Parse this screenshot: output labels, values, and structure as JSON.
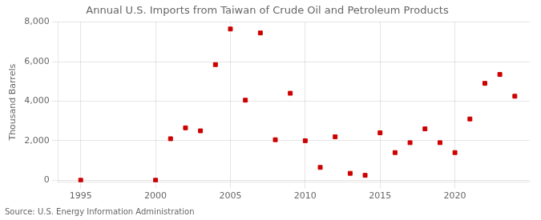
{
  "chart_data": {
    "type": "scatter",
    "title": "Annual U.S. Imports from Taiwan of Crude Oil and Petroleum Products",
    "ylabel": "Thousand Barrels",
    "source": "Source: U.S. Energy Information Administration",
    "x": [
      1995,
      2000,
      2001,
      2002,
      2003,
      2004,
      2005,
      2006,
      2007,
      2008,
      2009,
      2010,
      2011,
      2012,
      2013,
      2014,
      2015,
      2016,
      2017,
      2018,
      2019,
      2020,
      2021,
      2022,
      2023,
      2024
    ],
    "values": [
      0,
      0,
      2100,
      2650,
      2500,
      5850,
      7650,
      4050,
      7450,
      2050,
      4400,
      2000,
      650,
      2200,
      350,
      250,
      2400,
      1400,
      1900,
      2600,
      1900,
      1400,
      3100,
      4900,
      5350,
      4250
    ],
    "color": "#cc0000",
    "marker": "square",
    "xlim": [
      1993.5,
      2025
    ],
    "ylim": [
      -100,
      8000
    ],
    "xticks": [
      1995,
      2000,
      2005,
      2010,
      2015,
      2020
    ],
    "yticks": [
      0,
      {
        "value": 2000,
        "label": "2,000"
      },
      {
        "value": 4000,
        "label": "4,000"
      },
      {
        "value": 6000,
        "label": "6,000"
      },
      {
        "value": 8000,
        "label": "8,000"
      }
    ],
    "grid": true
  }
}
